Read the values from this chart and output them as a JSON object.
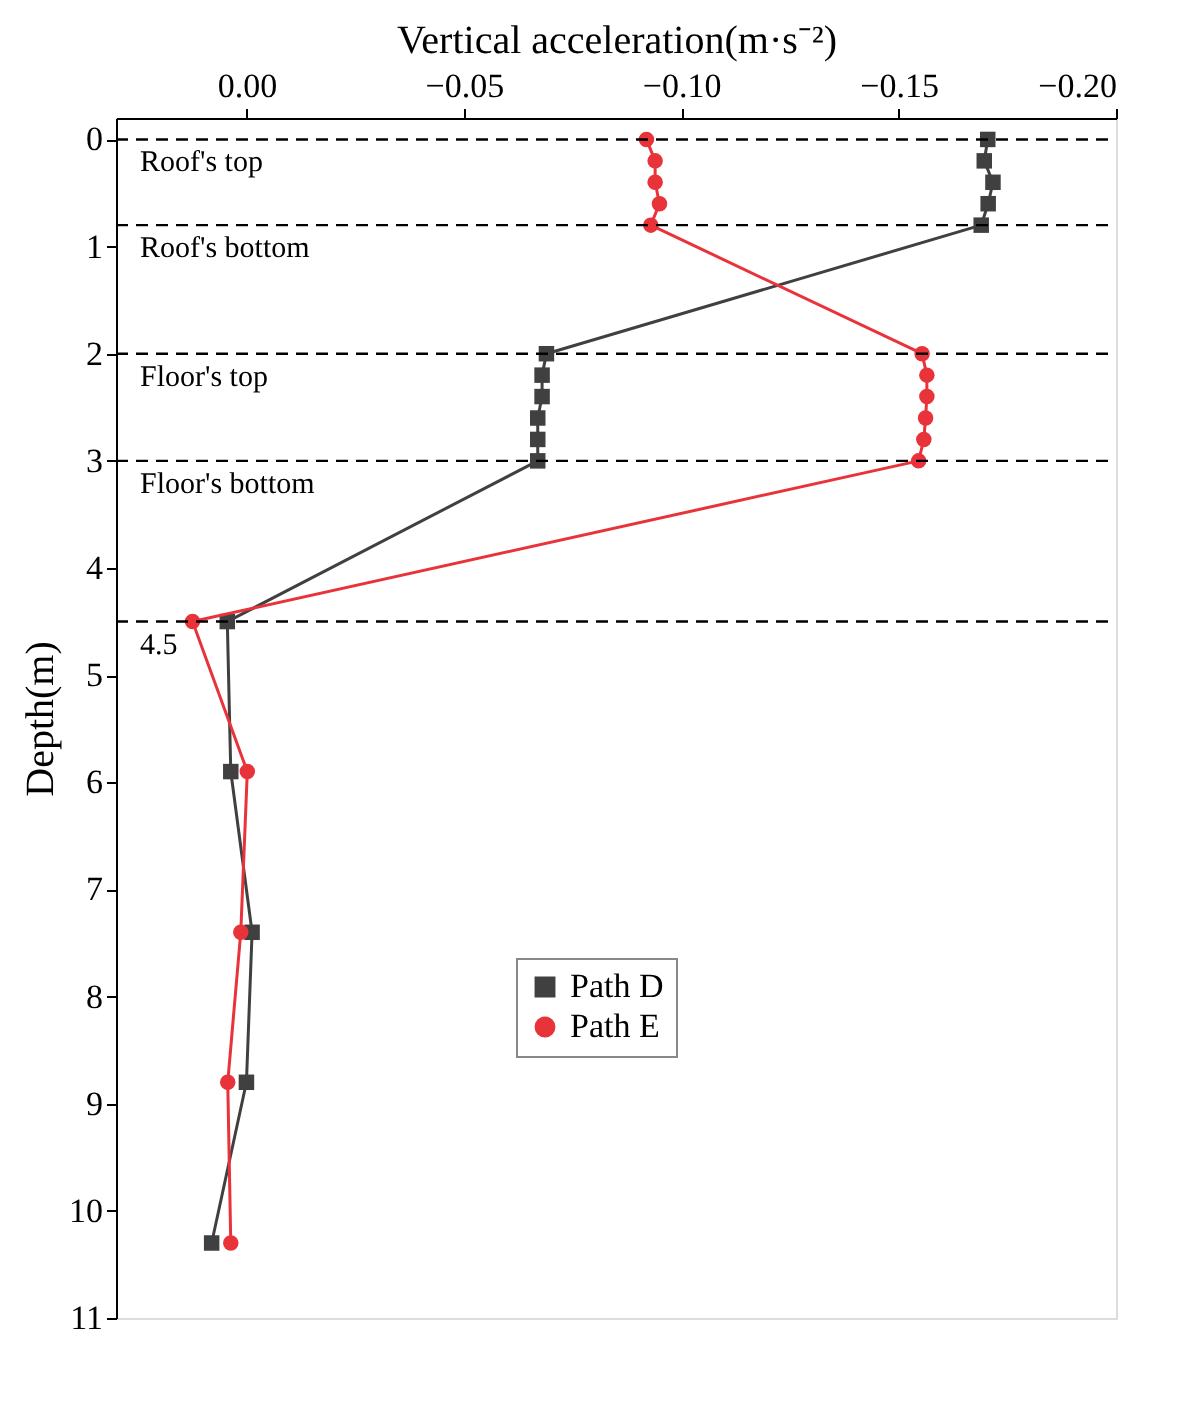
{
  "chart_data": {
    "type": "line",
    "xlabel": "Vertical acceleration(m·s⁻²)",
    "ylabel": "Depth(m)",
    "xlim": [
      0.03,
      -0.2
    ],
    "xticks": [
      {
        "value": 0,
        "label": "0.00"
      },
      {
        "value": -0.05,
        "label": "−0.05"
      },
      {
        "value": -0.1,
        "label": "−0.10"
      },
      {
        "value": -0.15,
        "label": "−0.15"
      },
      {
        "value": -0.2,
        "label": "−0.20"
      }
    ],
    "ylim": [
      11,
      -0.2
    ],
    "yticks": [
      0,
      1,
      2,
      3,
      4,
      5,
      6,
      7,
      8,
      9,
      10,
      11
    ],
    "grid": false,
    "legend": "bottom",
    "line_style": "solid",
    "series": [
      {
        "name": "Path D",
        "color": "#404040",
        "marker": "square",
        "x": [
          -0.1705,
          -0.1697,
          -0.1717,
          -0.1706,
          -0.169,
          -0.069,
          -0.068,
          -0.068,
          -0.067,
          -0.067,
          -0.067,
          0.0044,
          0.0036,
          -0.0013,
          0.0,
          0.008
        ],
        "values": [
          0,
          0.2,
          0.4,
          0.6,
          0.8,
          2.0,
          2.2,
          2.4,
          2.6,
          2.8,
          3.0,
          4.5,
          5.9,
          7.4,
          8.8,
          10.3
        ]
      },
      {
        "name": "Path E",
        "color": "#e8333a",
        "marker": "circle",
        "x": [
          -0.092,
          -0.094,
          -0.094,
          -0.095,
          -0.093,
          -0.1554,
          -0.1565,
          -0.1565,
          -0.1562,
          -0.1558,
          -0.1546,
          0.0124,
          -0.0002,
          0.0013,
          0.0043,
          0.0036
        ],
        "values": [
          0,
          0.2,
          0.4,
          0.6,
          0.8,
          2.0,
          2.2,
          2.4,
          2.6,
          2.8,
          3.0,
          4.5,
          5.9,
          7.4,
          8.8,
          10.3
        ]
      }
    ],
    "ref_lines": [
      {
        "axis": "y",
        "value": 0,
        "label": "Roof's top",
        "line_style": "dashed"
      },
      {
        "axis": "y",
        "value": 0.8,
        "label": "Roof's bottom",
        "line_style": "dashed"
      },
      {
        "axis": "y",
        "value": 2,
        "label": "Floor's top",
        "line_style": "dashed"
      },
      {
        "axis": "y",
        "value": 3,
        "label": "Floor's bottom",
        "line_style": "dashed"
      },
      {
        "axis": "y",
        "value": 4.5,
        "label": "4.5",
        "line_style": "dashed"
      }
    ]
  }
}
